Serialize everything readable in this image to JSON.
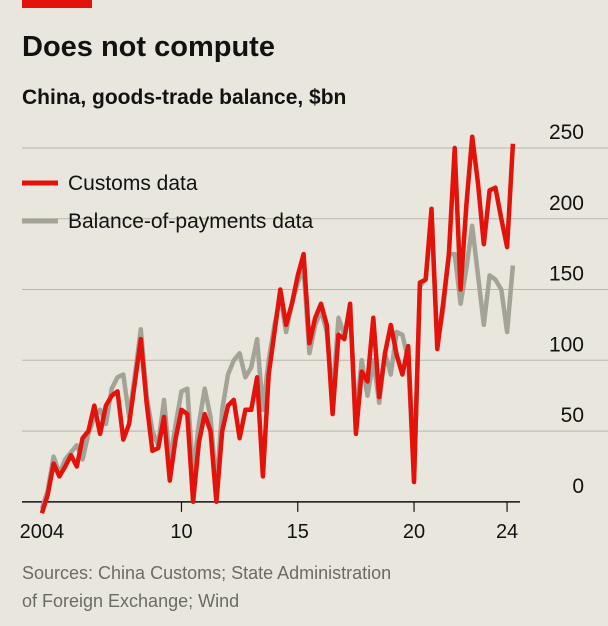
{
  "chart_data": {
    "type": "line",
    "title": "Does not compute",
    "subtitle": "China, goods-trade balance, $bn",
    "source": [
      "Sources: China Customs; State Administration",
      "of Foreign Exchange; Wind"
    ],
    "x": [
      2004,
      2004.25,
      2004.5,
      2004.75,
      2005,
      2005.25,
      2005.5,
      2005.75,
      2006,
      2006.25,
      2006.5,
      2006.75,
      2007,
      2007.25,
      2007.5,
      2007.75,
      2008,
      2008.25,
      2008.5,
      2008.75,
      2009,
      2009.25,
      2009.5,
      2009.75,
      2010,
      2010.25,
      2010.5,
      2010.75,
      2011,
      2011.25,
      2011.5,
      2011.75,
      2012,
      2012.25,
      2012.5,
      2012.75,
      2013,
      2013.25,
      2013.5,
      2013.75,
      2014,
      2014.25,
      2014.5,
      2014.75,
      2015,
      2015.25,
      2015.5,
      2015.75,
      2016,
      2016.25,
      2016.5,
      2016.75,
      2017,
      2017.25,
      2017.5,
      2017.75,
      2018,
      2018.25,
      2018.5,
      2018.75,
      2019,
      2019.25,
      2019.5,
      2019.75,
      2020,
      2020.25,
      2020.5,
      2020.75,
      2021,
      2021.25,
      2021.5,
      2021.75,
      2022,
      2022.25,
      2022.5,
      2022.75,
      2023,
      2023.25,
      2023.5,
      2023.75,
      2024,
      2024.25
    ],
    "series": [
      {
        "name": "Balance-of-payments data",
        "color": "#a3a398",
        "values": [
          -5,
          8,
          32,
          20,
          30,
          35,
          40,
          30,
          48,
          60,
          65,
          55,
          80,
          88,
          90,
          60,
          90,
          122,
          75,
          50,
          40,
          72,
          28,
          55,
          78,
          80,
          20,
          55,
          80,
          60,
          10,
          65,
          90,
          100,
          105,
          88,
          95,
          115,
          65,
          100,
          125,
          145,
          120,
          140,
          155,
          165,
          105,
          125,
          135,
          120,
          75,
          130,
          118,
          135,
          60,
          100,
          75,
          100,
          70,
          105,
          90,
          120,
          118,
          100,
          15,
          152,
          158,
          200,
          112,
          135,
          175,
          175,
          140,
          165,
          195,
          160,
          125,
          160,
          157,
          150,
          120,
          167
        ]
      },
      {
        "name": "Customs data",
        "color": "#e3120b",
        "values": [
          -8,
          5,
          27,
          18,
          25,
          33,
          25,
          45,
          50,
          68,
          48,
          68,
          75,
          78,
          44,
          55,
          85,
          115,
          70,
          36,
          38,
          60,
          15,
          45,
          65,
          62,
          0,
          42,
          62,
          50,
          0,
          50,
          68,
          72,
          45,
          65,
          65,
          88,
          18,
          90,
          120,
          150,
          125,
          140,
          160,
          175,
          112,
          130,
          140,
          125,
          62,
          118,
          115,
          140,
          48,
          92,
          85,
          130,
          74,
          105,
          125,
          104,
          90,
          110,
          14,
          155,
          157,
          207,
          108,
          140,
          175,
          250,
          150,
          210,
          258,
          225,
          182,
          220,
          222,
          200,
          180,
          253
        ]
      }
    ],
    "legend_order": [
      1,
      0
    ],
    "xlim": [
      2003.1,
      2024.9
    ],
    "xticks": [
      {
        "value": 2004,
        "label": "2004"
      },
      {
        "value": 2010,
        "label": "10"
      },
      {
        "value": 2015,
        "label": "15"
      },
      {
        "value": 2020,
        "label": "20"
      },
      {
        "value": 2024,
        "label": "24"
      }
    ],
    "ylim": [
      -10,
      262
    ],
    "yticks": [
      0,
      50,
      100,
      150,
      200,
      250
    ],
    "grid": true
  }
}
